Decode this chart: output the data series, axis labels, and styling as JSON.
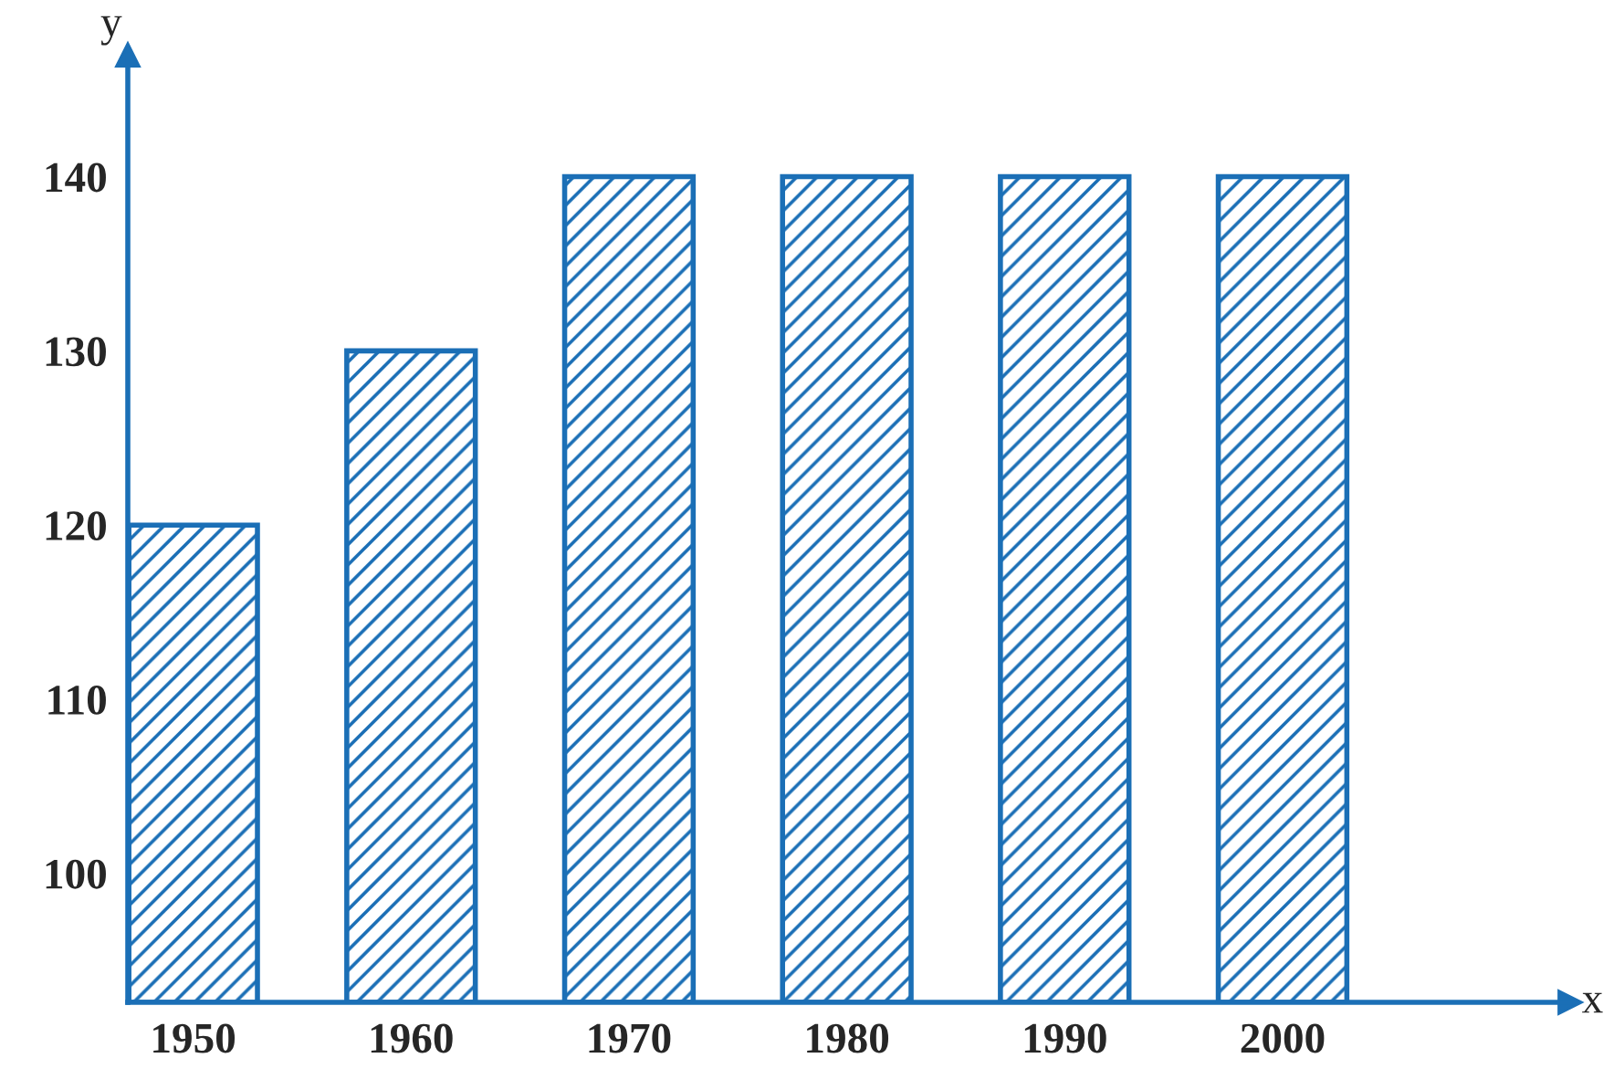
{
  "chart_data": {
    "type": "bar",
    "xlabel": "x",
    "ylabel": "y",
    "categories": [
      "1950",
      "1960",
      "1970",
      "1980",
      "1990",
      "2000"
    ],
    "values": [
      120,
      130,
      140,
      140,
      140,
      140
    ],
    "color": "#1b6fb6",
    "ylim": [
      92.6,
      147
    ],
    "yticks": [
      100,
      110,
      120,
      130,
      140
    ],
    "grid": false
  }
}
